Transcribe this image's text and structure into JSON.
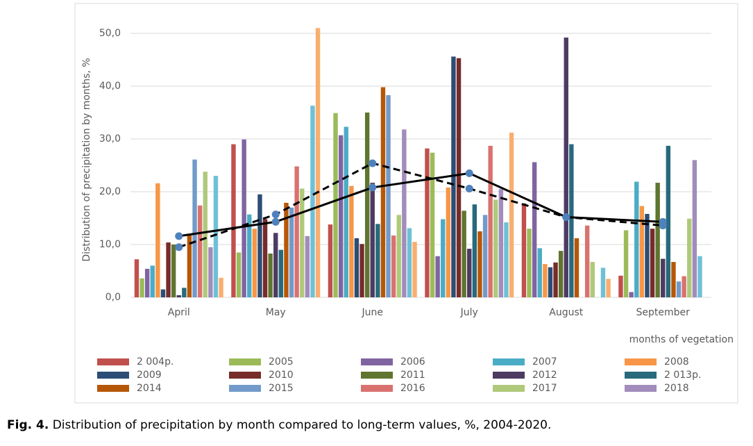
{
  "chart_data": {
    "type": "bar",
    "y_label": "Distribution of precipitation by months, %",
    "x_label": "months of vegetation",
    "caption_label": "Fig. 4.",
    "caption": "Distribution of precipitation by month compared to long-term values, %, 2004-2020.",
    "categories": [
      "April",
      "May",
      "June",
      "July",
      "August",
      "September"
    ],
    "ylim": [
      0,
      50
    ],
    "yticks": [
      {
        "value": 0,
        "label": "0,0"
      },
      {
        "value": 10,
        "label": "10,0"
      },
      {
        "value": 20,
        "label": "20,0"
      },
      {
        "value": 30,
        "label": "30,0"
      },
      {
        "value": 40,
        "label": "40,0"
      },
      {
        "value": 50,
        "label": "50,0"
      }
    ],
    "grid": true,
    "series": [
      {
        "name": "2 004р.",
        "color": "#c0504d",
        "values": [
          7.2,
          29.0,
          13.8,
          28.2,
          17.8,
          4.1
        ]
      },
      {
        "name": "2005",
        "color": "#9bbb59",
        "values": [
          3.6,
          8.5,
          34.9,
          27.4,
          13.0,
          12.7
        ]
      },
      {
        "name": "2006",
        "color": "#8064a2",
        "values": [
          5.4,
          29.9,
          30.7,
          7.8,
          25.6,
          1.0
        ]
      },
      {
        "name": "2007",
        "color": "#4bacc6",
        "values": [
          6.0,
          15.7,
          32.3,
          14.8,
          9.3,
          21.9
        ]
      },
      {
        "name": "2008",
        "color": "#f79646",
        "values": [
          21.6,
          13.0,
          21.1,
          20.8,
          6.3,
          17.3
        ]
      },
      {
        "name": "2009",
        "color": "#2c4d75",
        "values": [
          1.5,
          19.5,
          11.2,
          45.6,
          5.7,
          15.8
        ]
      },
      {
        "name": "2010",
        "color": "#772c2a",
        "values": [
          10.4,
          14.8,
          10.1,
          45.3,
          6.6,
          13.0
        ]
      },
      {
        "name": "2011",
        "color": "#5f7530",
        "values": [
          10.0,
          8.3,
          35.0,
          16.4,
          8.8,
          21.7
        ]
      },
      {
        "name": "2012",
        "color": "#4d3b62",
        "values": [
          0.4,
          12.2,
          21.7,
          9.2,
          49.2,
          7.3
        ]
      },
      {
        "name": "2 013р.",
        "color": "#276a7c",
        "values": [
          1.8,
          9.0,
          13.9,
          17.6,
          29.0,
          28.7
        ]
      },
      {
        "name": "2014",
        "color": "#b65708",
        "values": [
          11.8,
          17.9,
          39.8,
          12.5,
          11.2,
          6.7
        ]
      },
      {
        "name": "2015",
        "color": "#729aca",
        "values": [
          26.1,
          17.0,
          38.3,
          15.6,
          0,
          3.0
        ]
      },
      {
        "name": "2016",
        "color": "#d9726f",
        "values": [
          17.4,
          24.8,
          11.7,
          28.7,
          13.6,
          4.0
        ]
      },
      {
        "name": "2017",
        "color": "#afc97a",
        "values": [
          23.8,
          20.6,
          15.6,
          18.5,
          6.7,
          14.9
        ]
      },
      {
        "name": "2018",
        "color": "#a18cbb",
        "values": [
          9.5,
          11.6,
          31.8,
          20.5,
          0,
          26.0
        ]
      },
      {
        "color": "#6fc0d6",
        "values": [
          23.0,
          36.3,
          13.1,
          14.2,
          5.6,
          7.8
        ]
      },
      {
        "color": "#f9ae6f",
        "values": [
          3.7,
          51.0,
          10.5,
          31.2,
          3.5,
          0
        ]
      }
    ],
    "lines": [
      {
        "style": "solid",
        "color": "#000000",
        "marker_color": "#4f81bd",
        "values": [
          11.6,
          14.3,
          20.8,
          23.5,
          15.2,
          14.3
        ]
      },
      {
        "style": "dashed",
        "color": "#000000",
        "marker_color": "#4f81bd",
        "values": [
          9.5,
          15.7,
          25.4,
          20.6,
          15.2,
          13.6
        ]
      }
    ]
  }
}
